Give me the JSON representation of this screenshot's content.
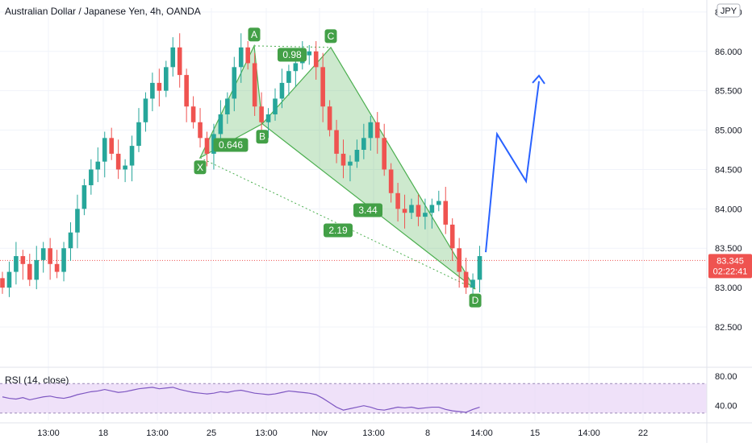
{
  "header": {
    "title": "Australian Dollar / Japanese Yen, 4h, OANDA",
    "currency": "JPY"
  },
  "colors": {
    "up": "#26a69a",
    "down": "#ef5350",
    "pattern_fill": "#4caf50",
    "pattern_label": "#43a047",
    "projection": "#2962ff",
    "rsi_line": "#7e57c2",
    "rsi_band": "#e8d4f7",
    "price_line": "#ef5350"
  },
  "chart_data": [
    {
      "type": "candlestick",
      "title": "Australian Dollar / Japanese Yen, 4h, OANDA",
      "ylim": [
        82.05,
        86.55
      ],
      "y_ticks": [
        "86.500",
        "86.000",
        "85.500",
        "85.000",
        "84.500",
        "84.000",
        "83.500",
        "83.000",
        "82.500"
      ],
      "x_tick_labels": [
        "13:00",
        "18",
        "13:00",
        "25",
        "13:00",
        "Nov",
        "13:00",
        "8",
        "14:00",
        "14:00",
        "15",
        "14:00",
        "22"
      ],
      "last_price": "83.345",
      "last_price_value": 83.345,
      "countdown": "02:22:41",
      "harmonic_points": [
        {
          "label": "X",
          "price": 84.65
        },
        {
          "label": "A",
          "price": 86.07
        },
        {
          "label": "B",
          "price": 85.08
        },
        {
          "label": "C",
          "price": 86.05
        },
        {
          "label": "D",
          "price": 82.98
        }
      ],
      "ratios": [
        "0.646",
        "0.98",
        "3.44",
        "2.19"
      ],
      "projection_path": [
        83.45,
        84.95,
        84.35,
        85.62
      ],
      "series_close": [
        83.0,
        83.2,
        83.4,
        83.3,
        83.1,
        83.35,
        83.5,
        83.3,
        83.2,
        83.5,
        83.7,
        84.0,
        84.3,
        84.5,
        84.6,
        84.9,
        84.7,
        84.5,
        84.55,
        84.8,
        85.1,
        85.4,
        85.6,
        85.5,
        85.8,
        86.05,
        85.7,
        85.3,
        85.1,
        84.9,
        84.7,
        84.95,
        85.2,
        85.4,
        85.8,
        86.05,
        85.85,
        85.3,
        85.1,
        85.2,
        85.4,
        85.6,
        85.75,
        85.85,
        85.95,
        86.0,
        85.8,
        85.3,
        85.0,
        84.7,
        84.55,
        84.6,
        84.75,
        84.9,
        85.1,
        84.9,
        84.5,
        84.2,
        84.0,
        83.95,
        84.05,
        83.9,
        83.95,
        84.05,
        84.1,
        83.8,
        83.5,
        83.2,
        83.0,
        83.1,
        83.4
      ]
    },
    {
      "type": "line",
      "title": "RSI (14, close)",
      "ylim": [
        20,
        90
      ],
      "y_ticks": [
        "80.00",
        "40.00"
      ],
      "band": [
        30,
        70
      ],
      "values": [
        52,
        50,
        49,
        51,
        48,
        50,
        52,
        53,
        51,
        50,
        52,
        55,
        57,
        59,
        60,
        62,
        60,
        58,
        59,
        61,
        63,
        64,
        65,
        63,
        64,
        65,
        62,
        60,
        58,
        57,
        56,
        57,
        59,
        58,
        60,
        61,
        59,
        57,
        56,
        55,
        56,
        58,
        60,
        59,
        58,
        57,
        55,
        50,
        44,
        38,
        34,
        36,
        38,
        40,
        38,
        35,
        34,
        36,
        38,
        37,
        38,
        36,
        37,
        38,
        38,
        35,
        33,
        32,
        31,
        35,
        38
      ]
    }
  ]
}
